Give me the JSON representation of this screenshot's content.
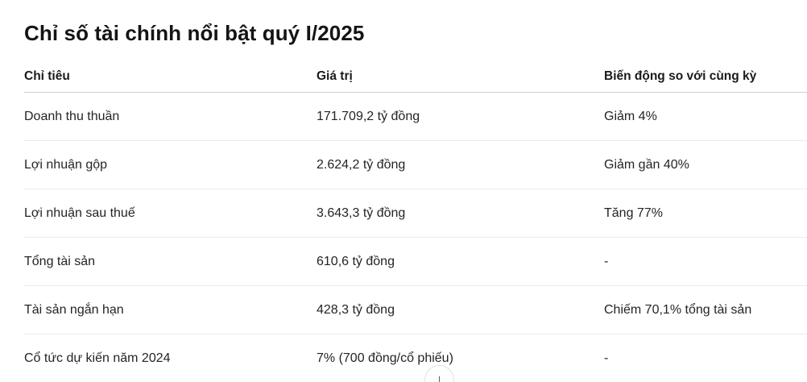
{
  "title": "Chỉ số tài chính nổi bật quý I/2025",
  "table": {
    "columns": [
      "Chỉ tiêu",
      "Giá trị",
      "Biến động so với cùng kỳ"
    ],
    "rows": [
      {
        "metric": "Doanh thu thuần",
        "value": "171.709,2 tỷ đồng",
        "change": "Giảm 4%"
      },
      {
        "metric": "Lợi nhuận gộp",
        "value": "2.624,2 tỷ đồng",
        "change": "Giảm gần 40%"
      },
      {
        "metric": "Lợi nhuận sau thuế",
        "value": "3.643,3 tỷ đồng",
        "change": "Tăng 77%"
      },
      {
        "metric": "Tổng tài sản",
        "value": "610,6 tỷ đồng",
        "change": "-"
      },
      {
        "metric": "Tài sản ngắn hạn",
        "value": "428,3 tỷ đồng",
        "change": "Chiếm 70,1% tổng tài sản"
      },
      {
        "metric": "Cổ tức dự kiến năm 2024",
        "value": "7% (700 đồng/cổ phiếu)",
        "change": "-"
      }
    ]
  },
  "scroll_button": {
    "icon": "↓"
  },
  "colors": {
    "background": "#ffffff",
    "title_text": "#141414",
    "body_text": "#242424",
    "header_divider": "#cfcfcf",
    "row_divider": "#ebebeb",
    "button_border": "#e2e2e2"
  }
}
